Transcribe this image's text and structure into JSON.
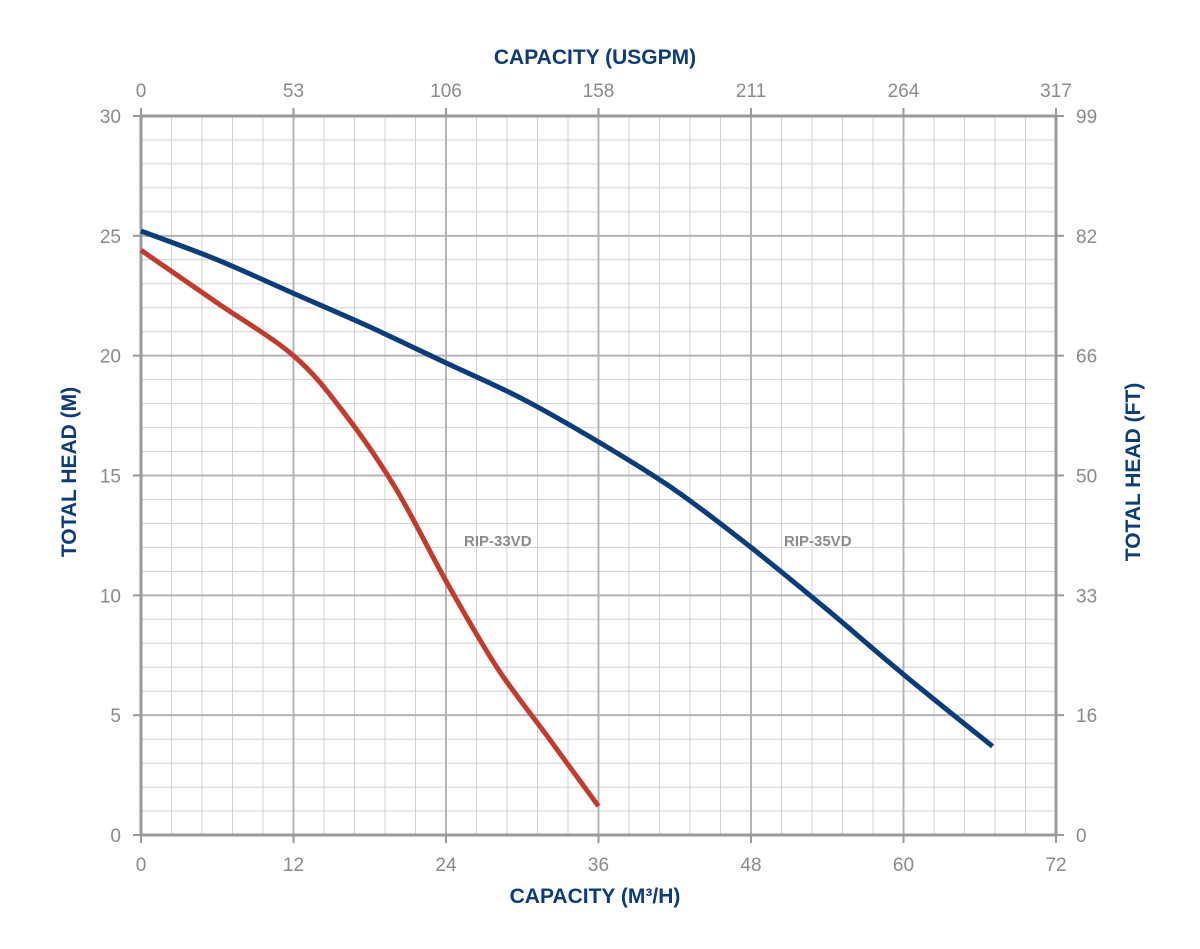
{
  "chart_data": {
    "type": "line",
    "title": "",
    "xlabel": "CAPACITY (M³/H)",
    "x2label": "CAPACITY (USGPM)",
    "ylabel": "TOTAL HEAD (M)",
    "y2label": "TOTAL HEAD (FT)",
    "xlim": [
      0,
      72
    ],
    "ylim": [
      0,
      30
    ],
    "x_ticks": [
      "0",
      "12",
      "24",
      "36",
      "48",
      "60",
      "72"
    ],
    "x2_ticks": [
      "0",
      "53",
      "106",
      "158",
      "211",
      "264",
      "317"
    ],
    "y_ticks": [
      "0",
      "5",
      "10",
      "15",
      "20",
      "25",
      "30"
    ],
    "y2_ticks": [
      "0",
      "16",
      "33",
      "50",
      "66",
      "82",
      "99"
    ],
    "grid": true,
    "series": [
      {
        "name": "RIP-35VD",
        "color": "#0d3c7a",
        "x": [
          0,
          6,
          12,
          18,
          24,
          30,
          36,
          42,
          48,
          54,
          60,
          67
        ],
        "y": [
          25.2,
          24.0,
          22.6,
          21.2,
          19.7,
          18.2,
          16.4,
          14.4,
          12.0,
          9.4,
          6.7,
          3.7
        ]
      },
      {
        "name": "RIP-33VD",
        "color": "#c23b2e",
        "x": [
          0,
          6,
          12,
          16,
          20,
          24,
          28,
          32,
          36
        ],
        "y": [
          24.4,
          22.2,
          20.0,
          17.6,
          14.5,
          10.6,
          7.0,
          4.1,
          1.2
        ]
      }
    ]
  }
}
